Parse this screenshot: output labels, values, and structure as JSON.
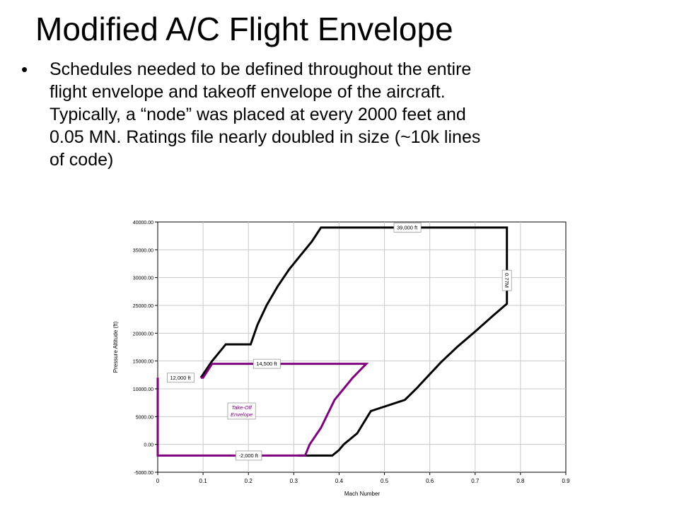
{
  "slide": {
    "title": "Modified A/C Flight Envelope",
    "bullet_lines": [
      "Schedules needed to be defined throughout the entire",
      "flight envelope and takeoff envelope of the aircraft.",
      "Typically, a “node” was placed at every 2000 feet and",
      "0.05 MN. Ratings file nearly doubled in size (~10k lines",
      "of code)"
    ]
  },
  "chart_data": {
    "type": "line",
    "title": "",
    "xlabel": "Mach Number",
    "ylabel": "Pressure Altitude (ft)",
    "xlim": [
      0,
      0.9
    ],
    "ylim": [
      -5000,
      40000
    ],
    "x_ticks": [
      0,
      0.1,
      0.2,
      0.3,
      0.4,
      0.5,
      0.6,
      0.7,
      0.8,
      0.9
    ],
    "x_tick_labels": [
      "0",
      "0.1",
      "0.2",
      "0.3",
      "0.4",
      "0.5",
      "0.6",
      "0.7",
      "0.8",
      "0.9"
    ],
    "y_ticks": [
      -5000,
      0,
      5000,
      10000,
      15000,
      20000,
      25000,
      30000,
      35000,
      40000
    ],
    "y_tick_labels": [
      "-5000.00",
      "0.00",
      "5000.00",
      "10000.00",
      "15000.00",
      "20000.00",
      "25000.00",
      "30000.00",
      "35000.00",
      "40000.00"
    ],
    "grid": true,
    "colors": {
      "flight_envelope": "#000000",
      "takeoff_envelope": "#800080",
      "grid": "#c8c8c8"
    },
    "series": [
      {
        "id": "flight",
        "points": [
          [
            0.095,
            12000
          ],
          [
            0.12,
            15000
          ],
          [
            0.15,
            18000
          ],
          [
            0.205,
            18000
          ],
          [
            0.22,
            21500
          ],
          [
            0.24,
            25000
          ],
          [
            0.265,
            28500
          ],
          [
            0.29,
            31500
          ],
          [
            0.315,
            34000
          ],
          [
            0.34,
            36500
          ],
          [
            0.36,
            39000
          ],
          [
            0.77,
            39000
          ],
          [
            0.77,
            25300
          ],
          [
            0.74,
            23200
          ],
          [
            0.7,
            20300
          ],
          [
            0.66,
            17500
          ],
          [
            0.625,
            14800
          ],
          [
            0.595,
            12200
          ],
          [
            0.57,
            10000
          ],
          [
            0.545,
            8000
          ],
          [
            0.47,
            6000
          ],
          [
            0.44,
            2000
          ],
          [
            0.41,
            0
          ],
          [
            0.4,
            -1000
          ],
          [
            0.385,
            -2000
          ],
          [
            0.31,
            -2000
          ]
        ]
      },
      {
        "id": "takeoff",
        "points": [
          [
            0,
            12000
          ],
          [
            0,
            -2000
          ],
          [
            0.325,
            -2000
          ],
          [
            0.335,
            0
          ],
          [
            0.36,
            3000
          ],
          [
            0.39,
            8000
          ],
          [
            0.43,
            12000
          ],
          [
            0.46,
            14500
          ],
          [
            0.12,
            14500
          ],
          [
            0.1,
            12000
          ],
          [
            0.095,
            12000
          ]
        ]
      }
    ],
    "annotations": [
      {
        "id": "ceiling",
        "text": "39,000 ft",
        "x": 0.55,
        "y": 39000,
        "rotate": 0,
        "italic": false,
        "border": true
      },
      {
        "id": "mach-limit",
        "text": "0.77M",
        "x": 0.77,
        "y": 29500,
        "rotate": 90,
        "italic": false,
        "border": true
      },
      {
        "id": "takeoff-ceiling",
        "text": "14,500 ft",
        "x": 0.24,
        "y": 14500,
        "rotate": 0,
        "italic": false,
        "border": true
      },
      {
        "id": "takeoff-start",
        "text": "12,000 ft",
        "x": 0.05,
        "y": 12000,
        "rotate": 0,
        "italic": false,
        "border": true
      },
      {
        "id": "takeoff-floor",
        "text": "-2,000 ft",
        "x": 0.2,
        "y": -2000,
        "rotate": 0,
        "italic": false,
        "border": true
      },
      {
        "id": "takeoff-label",
        "text": "Take-Off\nEnvelope",
        "x": 0.185,
        "y": 6000,
        "rotate": 0,
        "italic": true,
        "border": true,
        "color": "#800080"
      }
    ]
  }
}
